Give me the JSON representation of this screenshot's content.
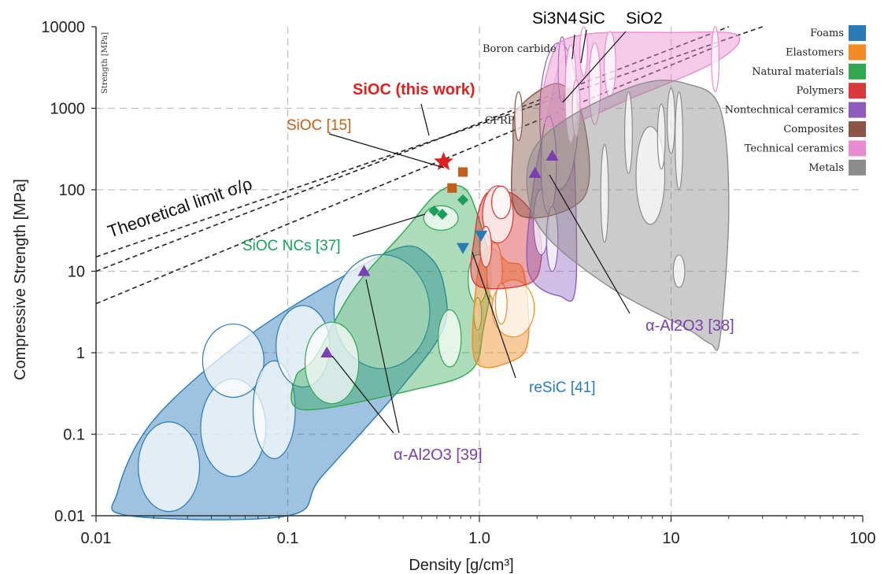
{
  "chart_data": {
    "type": "scatter",
    "xscale": "log",
    "yscale": "log",
    "xlim": [
      0.01,
      100
    ],
    "ylim": [
      0.01,
      10000
    ],
    "xlabel": "Density [g/cm³]",
    "ylabel": "Compressive Strength [MPa]",
    "inner_ylabel": "Strength [MPa]",
    "grid": true,
    "legend_position": "top-right",
    "x_ticks": [
      {
        "value": 0.01,
        "label": "0.01"
      },
      {
        "value": 0.1,
        "label": "0.1"
      },
      {
        "value": 1,
        "label": "1.0"
      },
      {
        "value": 10,
        "label": "10"
      },
      {
        "value": 100,
        "label": "100"
      }
    ],
    "y_ticks": [
      {
        "value": 0.01,
        "label": "0.01"
      },
      {
        "value": 0.1,
        "label": "0.1"
      },
      {
        "value": 1,
        "label": "1"
      },
      {
        "value": 10,
        "label": "10"
      },
      {
        "value": 100,
        "label": "100"
      },
      {
        "value": 1000,
        "label": "1000"
      },
      {
        "value": 10000,
        "label": "10000"
      }
    ],
    "legend": [
      {
        "name": "Foams",
        "color": "#2a7ab8"
      },
      {
        "name": "Elastomers",
        "color": "#f28b24"
      },
      {
        "name": "Natural materials",
        "color": "#2fa84f"
      },
      {
        "name": "Polymers",
        "color": "#d93a3a"
      },
      {
        "name": "Nontechnical ceramics",
        "color": "#8c5cbf"
      },
      {
        "name": "Composites",
        "color": "#8a5546"
      },
      {
        "name": "Technical ceramics",
        "color": "#e98ccf"
      },
      {
        "name": "Metals",
        "color": "#8c8c8c"
      }
    ],
    "families": [
      {
        "name": "Foams",
        "color": "#2a7ab8",
        "fill_opacity": 0.45,
        "outline": [
          [
            0.015,
            0.01
          ],
          [
            0.1,
            0.01
          ],
          [
            0.15,
            0.03
          ],
          [
            0.4,
            0.4
          ],
          [
            0.65,
            2
          ],
          [
            0.65,
            7
          ],
          [
            0.55,
            15
          ],
          [
            0.4,
            20
          ],
          [
            0.2,
            9
          ],
          [
            0.06,
            1.5
          ],
          [
            0.02,
            0.15
          ],
          [
            0.013,
            0.02
          ]
        ],
        "bubbles": [
          [
            0.024,
            0.04,
            0.16,
            0.55
          ],
          [
            0.052,
            0.12,
            0.17,
            0.6
          ],
          [
            0.052,
            0.8,
            0.16,
            0.45
          ],
          [
            0.085,
            0.2,
            0.11,
            0.6
          ],
          [
            0.12,
            1.2,
            0.14,
            0.5
          ],
          [
            0.31,
            3.2,
            0.25,
            0.7
          ]
        ]
      },
      {
        "name": "Natural materials",
        "color": "#2fa84f",
        "fill_opacity": 0.4,
        "outline": [
          [
            0.12,
            0.2
          ],
          [
            0.45,
            0.35
          ],
          [
            0.9,
            0.6
          ],
          [
            1.05,
            2
          ],
          [
            1.15,
            10
          ],
          [
            0.95,
            60
          ],
          [
            0.8,
            110
          ],
          [
            0.6,
            90
          ],
          [
            0.4,
            30
          ],
          [
            0.22,
            6
          ],
          [
            0.14,
            0.9
          ],
          [
            0.11,
            0.5
          ]
        ],
        "bubbles": [
          [
            0.17,
            0.75,
            0.14,
            0.5
          ],
          [
            0.63,
            45,
            0.09,
            0.15
          ],
          [
            0.7,
            1.5,
            0.06,
            0.35
          ],
          [
            0.98,
            8,
            0.05,
            0.3
          ],
          [
            0.98,
            3,
            0.02,
            0.2
          ]
        ]
      },
      {
        "name": "Elastomers",
        "color": "#f28b24",
        "fill_opacity": 0.45,
        "outline": [
          [
            0.95,
            0.8
          ],
          [
            1.5,
            0.8
          ],
          [
            1.8,
            1.5
          ],
          [
            1.7,
            10
          ],
          [
            1.4,
            13
          ],
          [
            1.1,
            20
          ],
          [
            0.97,
            8
          ]
        ],
        "bubbles": [
          [
            1.2,
            10,
            0.04,
            0.35
          ],
          [
            1.5,
            3.5,
            0.11,
            0.35
          ],
          [
            1.3,
            4,
            0.03,
            0.25
          ]
        ]
      },
      {
        "name": "Polymers",
        "color": "#d93a3a",
        "fill_opacity": 0.45,
        "outline": [
          [
            0.95,
            7
          ],
          [
            1.8,
            7
          ],
          [
            2.1,
            14
          ],
          [
            2.0,
            40
          ],
          [
            1.6,
            80
          ],
          [
            1.25,
            100
          ],
          [
            1.05,
            80
          ],
          [
            0.95,
            30
          ]
        ],
        "bubbles": [
          [
            1.25,
            50,
            0.08,
            0.35
          ],
          [
            1.08,
            20,
            0.03,
            0.25
          ],
          [
            1.3,
            70,
            0.05,
            0.2
          ]
        ]
      },
      {
        "name": "Nontechnical ceramics",
        "color": "#8c5cbf",
        "fill_opacity": 0.4,
        "outline": [
          [
            1.8,
            10
          ],
          [
            2.6,
            5
          ],
          [
            3.2,
            8
          ],
          [
            3.0,
            2000
          ],
          [
            2.7,
            4000
          ],
          [
            2.3,
            1000
          ],
          [
            1.9,
            100
          ]
        ],
        "bubbles": [
          [
            2.6,
            800,
            0.1,
            0.9
          ],
          [
            2.7,
            3000,
            0.02,
            0.4
          ],
          [
            2.1,
            40,
            0.04,
            0.4
          ],
          [
            2.3,
            200,
            0.04,
            0.6
          ],
          [
            2.4,
            25,
            0.03,
            0.4
          ]
        ]
      },
      {
        "name": "Composites",
        "color": "#8a5546",
        "fill_opacity": 0.45,
        "outline": [
          [
            1.6,
            50
          ],
          [
            3.5,
            80
          ],
          [
            3.5,
            700
          ],
          [
            2.6,
            2000
          ],
          [
            1.6,
            1000
          ],
          [
            1.5,
            400
          ]
        ],
        "bubbles": [
          [
            1.6,
            800,
            0.02,
            0.3
          ]
        ]
      },
      {
        "name": "Technical ceramics",
        "color": "#e98ccf",
        "fill_opacity": 0.45,
        "outline": [
          [
            2.3,
            600
          ],
          [
            7,
            1500
          ],
          [
            18,
            4000
          ],
          [
            22,
            8000
          ],
          [
            10,
            8500
          ],
          [
            3.5,
            8000
          ],
          [
            2.4,
            4500
          ]
        ],
        "bubbles": [
          [
            3.0,
            1500,
            0.03,
            0.6
          ],
          [
            4.0,
            2000,
            0.03,
            0.5
          ],
          [
            4.8,
            3500,
            0.03,
            0.4
          ],
          [
            17,
            4000,
            0.02,
            0.4
          ],
          [
            3.5,
            5000,
            0.02,
            0.3
          ],
          [
            3.2,
            1000,
            0.02,
            0.35
          ]
        ]
      },
      {
        "name": "Metals",
        "color": "#8c8c8c",
        "fill_opacity": 0.45,
        "outline": [
          [
            1.8,
            80
          ],
          [
            2.3,
            25
          ],
          [
            5,
            6
          ],
          [
            12,
            2
          ],
          [
            16,
            1.3
          ],
          [
            18,
            1.5
          ],
          [
            20,
            60
          ],
          [
            18,
            1000
          ],
          [
            12,
            2000
          ],
          [
            7,
            2000
          ],
          [
            3,
            800
          ],
          [
            1.9,
            300
          ]
        ],
        "bubbles": [
          [
            7.8,
            150,
            0.075,
            0.6
          ],
          [
            4.5,
            90,
            0.02,
            0.6
          ],
          [
            8.9,
            450,
            0.02,
            0.4
          ],
          [
            10,
            700,
            0.02,
            0.4
          ],
          [
            11,
            400,
            0.02,
            0.6
          ],
          [
            11,
            10,
            0.03,
            0.2
          ],
          [
            6,
            500,
            0.02,
            0.5
          ]
        ]
      }
    ],
    "points": [
      {
        "label": "SiOC (this work)",
        "marker": "star",
        "color": "#e02020",
        "x": 0.65,
        "y": 220
      },
      {
        "label": "SiOC [15]",
        "marker": "square",
        "color": "#c0601a",
        "x": 0.72,
        "y": 105
      },
      {
        "label": "SiOC [15]",
        "marker": "square",
        "color": "#c0601a",
        "x": 0.82,
        "y": 165
      },
      {
        "label": "SiOC NCs [37]",
        "marker": "diamond",
        "color": "#1aa05a",
        "x": 0.58,
        "y": 55
      },
      {
        "label": "SiOC NCs [37]",
        "marker": "diamond",
        "color": "#1aa05a",
        "x": 0.64,
        "y": 50
      },
      {
        "label": "SiOC NCs [37]",
        "marker": "diamond",
        "color": "#1aa05a",
        "x": 0.82,
        "y": 75
      },
      {
        "label": "reSiC [41]",
        "marker": "triangle-down",
        "color": "#2a7ab8",
        "x": 0.82,
        "y": 19
      },
      {
        "label": "reSiC [41]",
        "marker": "triangle-down",
        "color": "#2a7ab8",
        "x": 1.02,
        "y": 27
      },
      {
        "label": "α-Al2O3 [38]",
        "marker": "triangle-up",
        "color": "#7a3fb0",
        "x": 1.95,
        "y": 160
      },
      {
        "label": "α-Al2O3 [38]",
        "marker": "triangle-up",
        "color": "#7a3fb0",
        "x": 2.4,
        "y": 260
      },
      {
        "label": "α-Al2O3 [39]",
        "marker": "triangle-up",
        "color": "#7a3fb0",
        "x": 0.16,
        "y": 1.0
      },
      {
        "label": "α-Al2O3 [39]",
        "marker": "triangle-up",
        "color": "#7a3fb0",
        "x": 0.25,
        "y": 10
      }
    ],
    "guide_lines": [
      {
        "label": "Theoretical limit σ/ρ",
        "x1": 0.01,
        "y1": 15,
        "x2": 30,
        "y2": 10000
      },
      {
        "label": "",
        "x1": 0.01,
        "y1": 10,
        "x2": 20,
        "y2": 10000
      },
      {
        "label": "",
        "x1": 0.01,
        "y1": 4,
        "x2": 18,
        "y2": 6000
      }
    ],
    "annotations": [
      {
        "id": "this-work",
        "text": "SiOC (this work)",
        "color": "#e02020",
        "bold": true
      },
      {
        "id": "sioc15",
        "text": "SiOC [15]",
        "color": "#c0601a"
      },
      {
        "id": "sioc-ncs",
        "text": "SiOC NCs [37]",
        "color": "#1aa05a"
      },
      {
        "id": "resic",
        "text": "reSiC [41]",
        "color": "#2a7ab8"
      },
      {
        "id": "al2o3-38",
        "text": "α-Al2O3 [38]",
        "color": "#7a3fb0"
      },
      {
        "id": "al2o3-39",
        "text": "α-Al2O3 [39]",
        "color": "#7a3fb0"
      },
      {
        "id": "si3n4",
        "text": "Si3N4",
        "color": "#000000"
      },
      {
        "id": "sic",
        "text": "SiC",
        "color": "#000000"
      },
      {
        "id": "sio2",
        "text": "SiO2",
        "color": "#000000"
      },
      {
        "id": "boron-carbide",
        "text": "Boron carbide",
        "color": "#222222"
      },
      {
        "id": "cfrp",
        "text": "CFRP",
        "color": "#222222"
      }
    ]
  }
}
